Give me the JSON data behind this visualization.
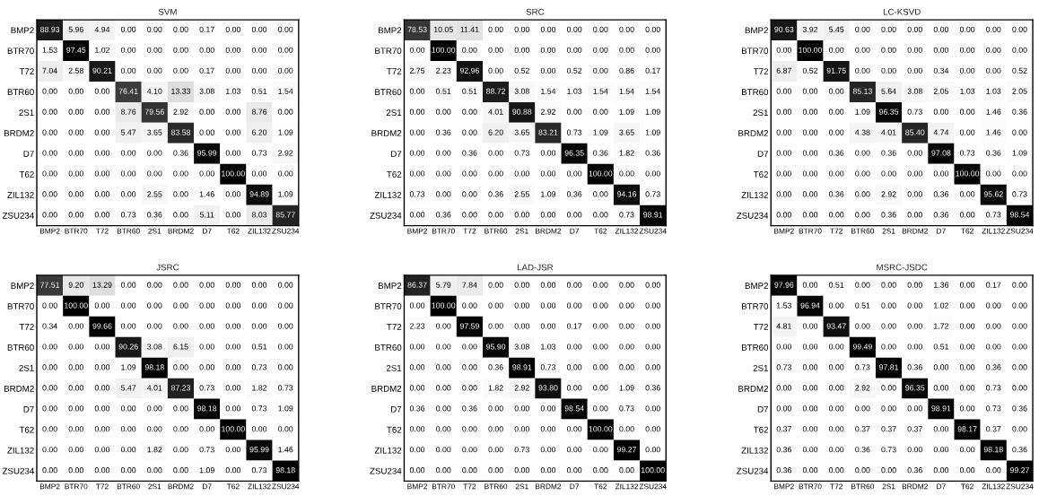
{
  "chart_data": [
    {
      "type": "heatmap",
      "title": "SVM",
      "grid": false,
      "categories": [
        "BMP2",
        "BTR70",
        "T72",
        "BTR60",
        "2S1",
        "BRDM2",
        "D7",
        "T62",
        "ZIL132",
        "ZSU234"
      ],
      "y_categories": [
        "BMP2",
        "BTR70",
        "T72",
        "BTR60",
        "2S1",
        "BRDM2",
        "D7",
        "T62",
        "ZIL132",
        "ZSU234"
      ],
      "cells": [
        [
          88.93,
          5.96,
          4.94,
          0,
          0,
          0,
          0.17,
          0,
          0,
          0
        ],
        [
          1.53,
          97.45,
          1.02,
          0,
          0,
          0,
          0,
          0,
          0,
          0
        ],
        [
          7.04,
          2.58,
          90.21,
          0,
          0,
          0,
          0.17,
          0,
          0,
          0
        ],
        [
          0,
          0,
          0,
          76.41,
          4.1,
          13.33,
          3.08,
          1.03,
          0.51,
          1.54
        ],
        [
          0,
          0,
          0,
          8.76,
          79.56,
          2.92,
          0,
          0,
          8.76,
          0
        ],
        [
          0,
          0,
          0,
          5.47,
          3.65,
          83.58,
          0,
          0,
          6.2,
          1.09
        ],
        [
          0,
          0,
          0,
          0,
          0,
          0.36,
          95.99,
          0,
          0.73,
          2.92
        ],
        [
          0,
          0,
          0,
          0,
          0,
          0,
          0,
          100,
          0,
          0
        ],
        [
          0,
          0,
          0,
          0,
          2.55,
          0,
          1.46,
          0,
          94.89,
          1.09
        ],
        [
          0,
          0,
          0,
          0.73,
          0.36,
          0,
          5.11,
          0,
          8.03,
          85.77
        ]
      ],
      "cell_labels": [
        [
          "88.93",
          "5.96",
          "4.94",
          "0.00",
          "0.00",
          "0.00",
          "0.17",
          "0.00",
          "0.00",
          "0.00"
        ],
        [
          "1.53",
          "97.45",
          "1.02",
          "0.00",
          "0.00",
          "0.00",
          "0.00",
          "0.00",
          "0.00",
          "0.00"
        ],
        [
          "7.04",
          "2.58",
          "90.21",
          "0.00",
          "0.00",
          "0.00",
          "0.17",
          "0.00",
          "0.00",
          "0.00"
        ],
        [
          "0.00",
          "0.00",
          "0.00",
          "76.41",
          "4.10",
          "13.33",
          "3.08",
          "1.03",
          "0.51",
          "1.54"
        ],
        [
          "0.00",
          "0.00",
          "0.00",
          "8.76",
          "79.56",
          "2.92",
          "0.00",
          "0.00",
          "8.76",
          "0.00"
        ],
        [
          "0.00",
          "0.00",
          "0.00",
          "5.47",
          "3.65",
          "83.58",
          "0.00",
          "0.00",
          "6.20",
          "1.09"
        ],
        [
          "0.00",
          "0.00",
          "0.00",
          "0.00",
          "0.00",
          "0.36",
          "95.99",
          "0.00",
          "0.73",
          "2.92"
        ],
        [
          "0.00",
          "0.00",
          "0.00",
          "0.00",
          "0.00",
          "0.00",
          "0.00",
          "100.00",
          "0.00",
          "0.00"
        ],
        [
          "0.00",
          "0.00",
          "0.00",
          "0.00",
          "2.55",
          "0.00",
          "1.46",
          "0.00",
          "94.89",
          "1.09"
        ],
        [
          "0.00",
          "0.00",
          "0.00",
          "0.73",
          "0.36",
          "0.00",
          "5.11",
          "0.00",
          "8.03",
          "85.77"
        ]
      ]
    },
    {
      "type": "heatmap",
      "title": "SRC",
      "grid": false,
      "categories": [
        "BMP2",
        "BTR70",
        "T72",
        "BTR60",
        "2S1",
        "BRDM2",
        "D7",
        "T62",
        "ZIL132",
        "ZSU234"
      ],
      "y_categories": [
        "BMP2",
        "BTR70",
        "T72",
        "BTR60",
        "2S1",
        "BRDM2",
        "D7",
        "T62",
        "ZIL132",
        "ZSU234"
      ],
      "cells": [
        [
          78.53,
          10.05,
          11.41,
          0,
          0,
          0,
          0,
          0,
          0,
          0
        ],
        [
          0,
          100,
          0,
          0,
          0,
          0,
          0,
          0,
          0,
          0
        ],
        [
          2.75,
          2.23,
          92.96,
          0,
          0.52,
          0,
          0.52,
          0,
          0.86,
          0.17
        ],
        [
          0,
          0.51,
          0.51,
          88.72,
          3.08,
          1.54,
          1.03,
          1.54,
          1.54,
          1.54
        ],
        [
          0,
          0,
          0,
          4.01,
          90.88,
          2.92,
          0,
          0,
          1.09,
          1.09
        ],
        [
          0,
          0.36,
          0,
          6.2,
          3.65,
          83.21,
          0.73,
          1.09,
          3.65,
          1.09
        ],
        [
          0,
          0,
          0.36,
          0,
          0.73,
          0,
          96.35,
          0.36,
          1.82,
          0.36
        ],
        [
          0,
          0,
          0,
          0,
          0,
          0,
          0,
          100,
          0,
          0
        ],
        [
          0.73,
          0,
          0,
          0.36,
          2.55,
          1.09,
          0.36,
          0,
          94.16,
          0.73
        ],
        [
          0,
          0.36,
          0,
          0,
          0,
          0,
          0,
          0,
          0.73,
          98.91
        ]
      ],
      "cell_labels": [
        [
          "78.53",
          "10.05",
          "11.41",
          "0.00",
          "0.00",
          "0.00",
          "0.00",
          "0.00",
          "0.00",
          "0.00"
        ],
        [
          "0.00",
          "100.00",
          "0.00",
          "0.00",
          "0.00",
          "0.00",
          "0.00",
          "0.00",
          "0.00",
          "0.00"
        ],
        [
          "2.75",
          "2.23",
          "92.96",
          "0.00",
          "0.52",
          "0.00",
          "0.52",
          "0.00",
          "0.86",
          "0.17"
        ],
        [
          "0.00",
          "0.51",
          "0.51",
          "88.72",
          "3.08",
          "1.54",
          "1.03",
          "1.54",
          "1.54",
          "1.54"
        ],
        [
          "0.00",
          "0.00",
          "0.00",
          "4.01",
          "90.88",
          "2.92",
          "0.00",
          "0.00",
          "1.09",
          "1.09"
        ],
        [
          "0.00",
          "0.36",
          "0.00",
          "6.20",
          "3.65",
          "83.21",
          "0.73",
          "1.09",
          "3.65",
          "1.09"
        ],
        [
          "0.00",
          "0.00",
          "0.36",
          "0.00",
          "0.73",
          "0.00",
          "96.35",
          "0.36",
          "1.82",
          "0.36"
        ],
        [
          "0.00",
          "0.00",
          "0.00",
          "0.00",
          "0.00",
          "0.00",
          "0.00",
          "100.00",
          "0.00",
          "0.00"
        ],
        [
          "0.73",
          "0.00",
          "0.00",
          "0.36",
          "2.55",
          "1.09",
          "0.36",
          "0.00",
          "94.16",
          "0.73"
        ],
        [
          "0.00",
          "0.36",
          "0.00",
          "0.00",
          "0.00",
          "0.00",
          "0.00",
          "0.00",
          "0.73",
          "98.91"
        ]
      ]
    },
    {
      "type": "heatmap",
      "title": "LC-KSVD",
      "grid": false,
      "categories": [
        "BMP2",
        "BTR70",
        "T72",
        "BTR60",
        "2S1",
        "BRDM2",
        "D7",
        "T62",
        "ZIL132",
        "ZSU234"
      ],
      "y_categories": [
        "BMP2",
        "BTR70",
        "T72",
        "BTR60",
        "2S1",
        "BRDM2",
        "D7",
        "T62",
        "ZIL132",
        "ZSU234"
      ],
      "cells": [
        [
          90.63,
          3.92,
          5.45,
          0,
          0,
          0,
          0,
          0,
          0,
          0
        ],
        [
          0,
          100,
          0,
          0,
          0,
          0,
          0,
          0,
          0,
          0
        ],
        [
          6.87,
          0.52,
          91.75,
          0,
          0,
          0,
          0.34,
          0,
          0,
          0.52
        ],
        [
          0,
          0,
          0,
          85.13,
          5.64,
          3.08,
          2.05,
          1.03,
          1.03,
          2.05
        ],
        [
          0,
          0,
          0,
          1.09,
          96.35,
          0.73,
          0,
          0,
          1.46,
          0.36
        ],
        [
          0,
          0,
          0,
          4.38,
          4.01,
          85.4,
          4.74,
          0,
          1.46,
          0
        ],
        [
          0,
          0,
          0.36,
          0,
          0.36,
          0,
          97.08,
          0.73,
          0.36,
          1.09
        ],
        [
          0,
          0,
          0,
          0,
          0,
          0,
          0,
          100,
          0,
          0
        ],
        [
          0,
          0,
          0.36,
          0,
          2.92,
          0,
          0.36,
          0,
          95.62,
          0.73
        ],
        [
          0,
          0,
          0,
          0,
          0.36,
          0,
          0.36,
          0,
          0.73,
          98.54
        ]
      ],
      "cell_labels": [
        [
          "90.63",
          "3.92",
          "5.45",
          "0.00",
          "0.00",
          "0.00",
          "0.00",
          "0.00",
          "0.00",
          "0.00"
        ],
        [
          "0.00",
          "100.00",
          "0.00",
          "0.00",
          "0.00",
          "0.00",
          "0.00",
          "0.00",
          "0.00",
          "0.00"
        ],
        [
          "6.87",
          "0.52",
          "91.75",
          "0.00",
          "0.00",
          "0.00",
          "0.34",
          "0.00",
          "0.00",
          "0.52"
        ],
        [
          "0.00",
          "0.00",
          "0.00",
          "85.13",
          "5.64",
          "3.08",
          "2.05",
          "1.03",
          "1.03",
          "2.05"
        ],
        [
          "0.00",
          "0.00",
          "0.00",
          "1.09",
          "96.35",
          "0.73",
          "0.00",
          "0.00",
          "1.46",
          "0.36"
        ],
        [
          "0.00",
          "0.00",
          "0.00",
          "4.38",
          "4.01",
          "85.40",
          "4.74",
          "0.00",
          "1.46",
          "0.00"
        ],
        [
          "0.00",
          "0.00",
          "0.36",
          "0.00",
          "0.36",
          "0.00",
          "97.08",
          "0.73",
          "0.36",
          "1.09"
        ],
        [
          "0.00",
          "0.00",
          "0.00",
          "0.00",
          "0.00",
          "0.00",
          "0.00",
          "100.00",
          "0.00",
          "0.00"
        ],
        [
          "0.00",
          "0.00",
          "0.36",
          "0.00",
          "2.92",
          "0.00",
          "0.36",
          "0.00",
          "95.62",
          "0.73"
        ],
        [
          "0.00",
          "0.00",
          "0.00",
          "0.00",
          "0.36",
          "0.00",
          "0.36",
          "0.00",
          "0.73",
          "98.54"
        ]
      ]
    },
    {
      "type": "heatmap",
      "title": "JSRC",
      "grid": false,
      "categories": [
        "BMP2",
        "BTR70",
        "T72",
        "BTR60",
        "2S1",
        "BRDM2",
        "D7",
        "T62",
        "ZIL132",
        "ZSU234"
      ],
      "y_categories": [
        "BMP2",
        "BTR70",
        "T72",
        "BTR60",
        "2S1",
        "BRDM2",
        "D7",
        "T62",
        "ZIL132",
        "ZSU234"
      ],
      "cells": [
        [
          77.51,
          9.2,
          13.29,
          0,
          0,
          0,
          0,
          0,
          0,
          0
        ],
        [
          0,
          100,
          0,
          0,
          0,
          0,
          0,
          0,
          0,
          0
        ],
        [
          0.34,
          0,
          99.66,
          0,
          0,
          0,
          0,
          0,
          0,
          0
        ],
        [
          0,
          0,
          0,
          90.26,
          3.08,
          6.15,
          0,
          0,
          0.51,
          0
        ],
        [
          0,
          0,
          0,
          1.09,
          98.18,
          0,
          0,
          0,
          0.73,
          0
        ],
        [
          0,
          0,
          0,
          5.47,
          4.01,
          87.23,
          0.73,
          0,
          1.82,
          0.73
        ],
        [
          0,
          0,
          0,
          0,
          0,
          0,
          98.18,
          0,
          0.73,
          1.09
        ],
        [
          0,
          0,
          0,
          0,
          0,
          0,
          0,
          100,
          0,
          0
        ],
        [
          0,
          0,
          0,
          0,
          1.82,
          0,
          0.73,
          0,
          95.99,
          1.46
        ],
        [
          0,
          0,
          0,
          0,
          0,
          0,
          1.09,
          0,
          0.73,
          98.18
        ]
      ],
      "cell_labels": [
        [
          "77.51",
          "9.20",
          "13.29",
          "0.00",
          "0.00",
          "0.00",
          "0.00",
          "0.00",
          "0.00",
          "0.00"
        ],
        [
          "0.00",
          "100.00",
          "0.00",
          "0.00",
          "0.00",
          "0.00",
          "0.00",
          "0.00",
          "0.00",
          "0.00"
        ],
        [
          "0.34",
          "0.00",
          "99.66",
          "0.00",
          "0.00",
          "0.00",
          "0.00",
          "0.00",
          "0.00",
          "0.00"
        ],
        [
          "0.00",
          "0.00",
          "0.00",
          "90.26",
          "3.08",
          "6.15",
          "0.00",
          "0.00",
          "0.51",
          "0.00"
        ],
        [
          "0.00",
          "0.00",
          "0.00",
          "1.09",
          "98.18",
          "0.00",
          "0.00",
          "0.00",
          "0.73",
          "0.00"
        ],
        [
          "0.00",
          "0.00",
          "0.00",
          "5.47",
          "4.01",
          "87.23",
          "0.73",
          "0.00",
          "1.82",
          "0.73"
        ],
        [
          "0.00",
          "0.00",
          "0.00",
          "0.00",
          "0.00",
          "0.00",
          "98.18",
          "0.00",
          "0.73",
          "1.09"
        ],
        [
          "0.00",
          "0.00",
          "0.00",
          "0.00",
          "0.00",
          "0.00",
          "0.00",
          "100.00",
          "0.00",
          "0.00"
        ],
        [
          "0.00",
          "0.00",
          "0.00",
          "0.00",
          "1.82",
          "0.00",
          "0.73",
          "0.00",
          "95.99",
          "1.46"
        ],
        [
          "0.00",
          "0.00",
          "0.00",
          "0.00",
          "0.00",
          "0.00",
          "1.09",
          "0.00",
          "0.73",
          "98.18"
        ]
      ]
    },
    {
      "type": "heatmap",
      "title": "LAD-JSR",
      "grid": false,
      "categories": [
        "BMP2",
        "BTR70",
        "T72",
        "BTR60",
        "2S1",
        "BRDM2",
        "D7",
        "T62",
        "ZIL132",
        "ZSU234"
      ],
      "y_categories": [
        "BMP2",
        "BTR70",
        "T72",
        "BTR60",
        "2S1",
        "BRDM2",
        "D7",
        "T62",
        "ZIL132",
        "ZSU234"
      ],
      "cells": [
        [
          86.37,
          5.79,
          7.84,
          0,
          0,
          0,
          0,
          0,
          0,
          0
        ],
        [
          0,
          100,
          0,
          0,
          0,
          0,
          0,
          0,
          0,
          0
        ],
        [
          2.23,
          0,
          97.59,
          0,
          0,
          0,
          0.17,
          0,
          0,
          0
        ],
        [
          0,
          0,
          0,
          95.9,
          3.08,
          1.03,
          0,
          0,
          0,
          0
        ],
        [
          0,
          0,
          0,
          0.36,
          98.91,
          0.73,
          0,
          0,
          0,
          0
        ],
        [
          0,
          0,
          0,
          1.82,
          2.92,
          93.8,
          0,
          0,
          1.09,
          0.36
        ],
        [
          0.36,
          0,
          0.36,
          0,
          0,
          0,
          98.54,
          0,
          0.73,
          0
        ],
        [
          0,
          0,
          0,
          0,
          0,
          0,
          0,
          100,
          0,
          0
        ],
        [
          0,
          0,
          0,
          0,
          0.73,
          0,
          0,
          0,
          99.27,
          0
        ],
        [
          0,
          0,
          0,
          0,
          0,
          0,
          0,
          0,
          0,
          100
        ]
      ],
      "cell_labels": [
        [
          "86.37",
          "5.79",
          "7.84",
          "0.00",
          "0.00",
          "0.00",
          "0.00",
          "0.00",
          "0.00",
          "0.00"
        ],
        [
          "0.00",
          "100.00",
          "0.00",
          "0.00",
          "0.00",
          "0.00",
          "0.00",
          "0.00",
          "0.00",
          "0.00"
        ],
        [
          "2.23",
          "0.00",
          "97.59",
          "0.00",
          "0.00",
          "0.00",
          "0.17",
          "0.00",
          "0.00",
          "0.00"
        ],
        [
          "0.00",
          "0.00",
          "0.00",
          "95.90",
          "3.08",
          "1.03",
          "0.00",
          "0.00",
          "0.00",
          "0.00"
        ],
        [
          "0.00",
          "0.00",
          "0.00",
          "0.36",
          "98.91",
          "0.73",
          "0.00",
          "0.00",
          "0.00",
          "0.00"
        ],
        [
          "0.00",
          "0.00",
          "0.00",
          "1.82",
          "2.92",
          "93.80",
          "0.00",
          "0.00",
          "1.09",
          "0.36"
        ],
        [
          "0.36",
          "0.00",
          "0.36",
          "0.00",
          "0.00",
          "0.00",
          "98.54",
          "0.00",
          "0.73",
          "0.00"
        ],
        [
          "0.00",
          "0.00",
          "0.00",
          "0.00",
          "0.00",
          "0.00",
          "0.00",
          "100.00",
          "0.00",
          "0.00"
        ],
        [
          "0.00",
          "0.00",
          "0.00",
          "0.00",
          "0.73",
          "0.00",
          "0.00",
          "0.00",
          "99.27",
          "0.00"
        ],
        [
          "0.00",
          "0.00",
          "0.00",
          "0.00",
          "0.00",
          "0.00",
          "0.00",
          "0.00",
          "0.00",
          "100.00"
        ]
      ]
    },
    {
      "type": "heatmap",
      "title": "MSRC-JSDC",
      "grid": false,
      "categories": [
        "BMP2",
        "BTR70",
        "T72",
        "BTR60",
        "2S1",
        "BRDM2",
        "D7",
        "T62",
        "ZIL132",
        "ZSU234"
      ],
      "y_categories": [
        "BMP2",
        "BTR70",
        "T72",
        "BTR60",
        "2S1",
        "BRDM2",
        "D7",
        "T62",
        "ZIL132",
        "ZSU234"
      ],
      "cells": [
        [
          97.96,
          0,
          0.51,
          0,
          0,
          0,
          1.36,
          0,
          0.17,
          0
        ],
        [
          1.53,
          96.94,
          0,
          0.51,
          0,
          0,
          1.02,
          0,
          0,
          0
        ],
        [
          4.81,
          0,
          93.47,
          0,
          0,
          0,
          1.72,
          0,
          0,
          0
        ],
        [
          0,
          0,
          0,
          99.49,
          0,
          0,
          0.51,
          0,
          0,
          0
        ],
        [
          0.73,
          0,
          0,
          0.73,
          97.81,
          0.36,
          0,
          0,
          0.36,
          0
        ],
        [
          0,
          0,
          0,
          2.92,
          0,
          96.35,
          0,
          0,
          0.73,
          0
        ],
        [
          0,
          0,
          0,
          0,
          0,
          0,
          98.91,
          0,
          0.73,
          0.36
        ],
        [
          0.37,
          0,
          0,
          0.37,
          0.37,
          0.37,
          0,
          98.17,
          0.37,
          0
        ],
        [
          0.36,
          0,
          0,
          0.36,
          0.73,
          0,
          0,
          0,
          98.18,
          0.36
        ],
        [
          0.36,
          0,
          0,
          0,
          0,
          0.36,
          0,
          0,
          0,
          99.27
        ]
      ],
      "cell_labels": [
        [
          "97.96",
          "0.00",
          "0.51",
          "0.00",
          "0.00",
          "0.00",
          "1.36",
          "0.00",
          "0.17",
          "0.00"
        ],
        [
          "1.53",
          "96.94",
          "0.00",
          "0.51",
          "0.00",
          "0.00",
          "1.02",
          "0.00",
          "0.00",
          "0.00"
        ],
        [
          "4.81",
          "0.00",
          "93.47",
          "0.00",
          "0.00",
          "0.00",
          "1.72",
          "0.00",
          "0.00",
          "0.00"
        ],
        [
          "0.00",
          "0.00",
          "0.00",
          "99.49",
          "0.00",
          "0.00",
          "0.51",
          "0.00",
          "0.00",
          "0.00"
        ],
        [
          "0.73",
          "0.00",
          "0.00",
          "0.73",
          "97.81",
          "0.36",
          "0.00",
          "0.00",
          "0.36",
          "0.00"
        ],
        [
          "0.00",
          "0.00",
          "0.00",
          "2.92",
          "0.00",
          "96.35",
          "0.00",
          "0.00",
          "0.73",
          "0.00"
        ],
        [
          "0.00",
          "0.00",
          "0.00",
          "0.00",
          "0.00",
          "0.00",
          "98.91",
          "0.00",
          "0.73",
          "0.36"
        ],
        [
          "0.37",
          "0.00",
          "0.00",
          "0.37",
          "0.37",
          "0.37",
          "0.00",
          "98.17",
          "0.37",
          "0.00"
        ],
        [
          "0.36",
          "0.00",
          "0.00",
          "0.36",
          "0.73",
          "0.00",
          "0.00",
          "0.00",
          "98.18",
          "0.36"
        ],
        [
          "0.36",
          "0.00",
          "0.00",
          "0.00",
          "0.00",
          "0.36",
          "0.00",
          "0.00",
          "0.00",
          "99.27"
        ]
      ]
    }
  ]
}
